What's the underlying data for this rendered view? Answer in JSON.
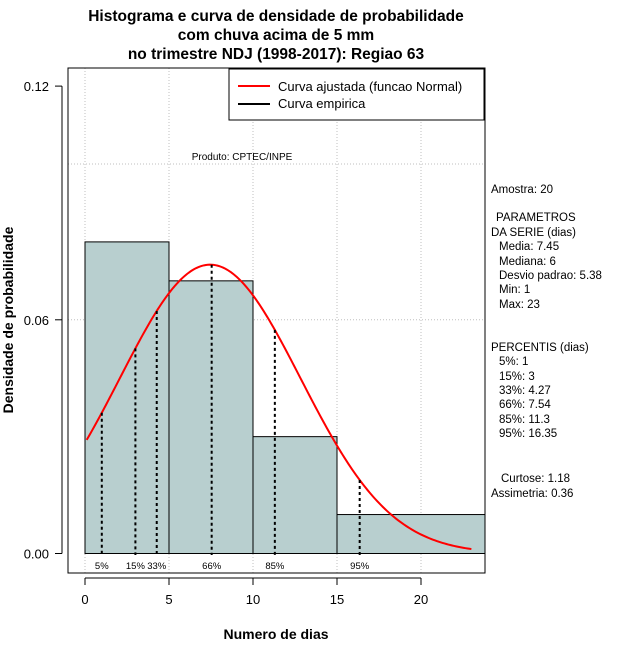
{
  "chart_data": {
    "type": "histogram",
    "title_lines": [
      "Histograma e curva de densidade de probabilidade",
      "com chuva acima de 5 mm",
      "no trimestre NDJ (1998-2017): Regiao 63"
    ],
    "xlabel": "Numero de dias",
    "ylabel": "Densidade de probabilidade",
    "xlim": [
      -1,
      24
    ],
    "ylim": [
      0,
      0.12
    ],
    "x_ticks": [
      0,
      5,
      10,
      15,
      20
    ],
    "y_ticks": [
      0.0,
      0.06,
      0.12
    ],
    "y_tick_labels": [
      "0.00",
      "0.06",
      "0.12"
    ],
    "x_grid": [
      0,
      5,
      10,
      15,
      20
    ],
    "y_grid": [
      0.06,
      0.1
    ],
    "bars": [
      {
        "x0": 0,
        "x1": 5,
        "density": 0.08
      },
      {
        "x0": 5,
        "x1": 10,
        "density": 0.07
      },
      {
        "x0": 10,
        "x1": 15,
        "density": 0.03
      },
      {
        "x0": 15,
        "x1": 24,
        "density": 0.01
      }
    ],
    "bar_color": "#b8cfcf",
    "normal_curve": {
      "mean": 7.45,
      "sd": 5.38,
      "x_from": 0.1,
      "x_to": 23,
      "color": "#ff0000"
    },
    "percentiles": [
      {
        "label": "5%",
        "x": 1
      },
      {
        "label": "15%",
        "x": 3
      },
      {
        "label": "33%",
        "x": 4.27
      },
      {
        "label": "66%",
        "x": 7.54
      },
      {
        "label": "85%",
        "x": 11.3
      },
      {
        "label": "95%",
        "x": 16.35
      }
    ],
    "legend": [
      {
        "label": "Curva ajustada (funcao Normal)",
        "color": "#ff0000"
      },
      {
        "label": "Curva empirica",
        "color": "#000000"
      }
    ],
    "legend_position": "top-right",
    "product_label": "Produto: CPTEC/INPE"
  },
  "stats": {
    "amostra": "Amostra: 20",
    "param_header_1": "PARAMETROS",
    "param_header_2": "DA SERIE (dias)",
    "media": "Media: 7.45",
    "mediana": "Mediana: 6",
    "desvio": "Desvio padrao: 5.38",
    "min": "Min: 1",
    "max": "Max: 23",
    "percentis_header": "PERCENTIS (dias)",
    "p5": "5%: 1",
    "p15": "15%: 3",
    "p33": "33%: 4.27",
    "p66": "66%: 7.54",
    "p85": "85%: 11.3",
    "p95": "95%: 16.35",
    "curtose": "Curtose: 1.18",
    "assimetria": "Assimetria: 0.36"
  }
}
